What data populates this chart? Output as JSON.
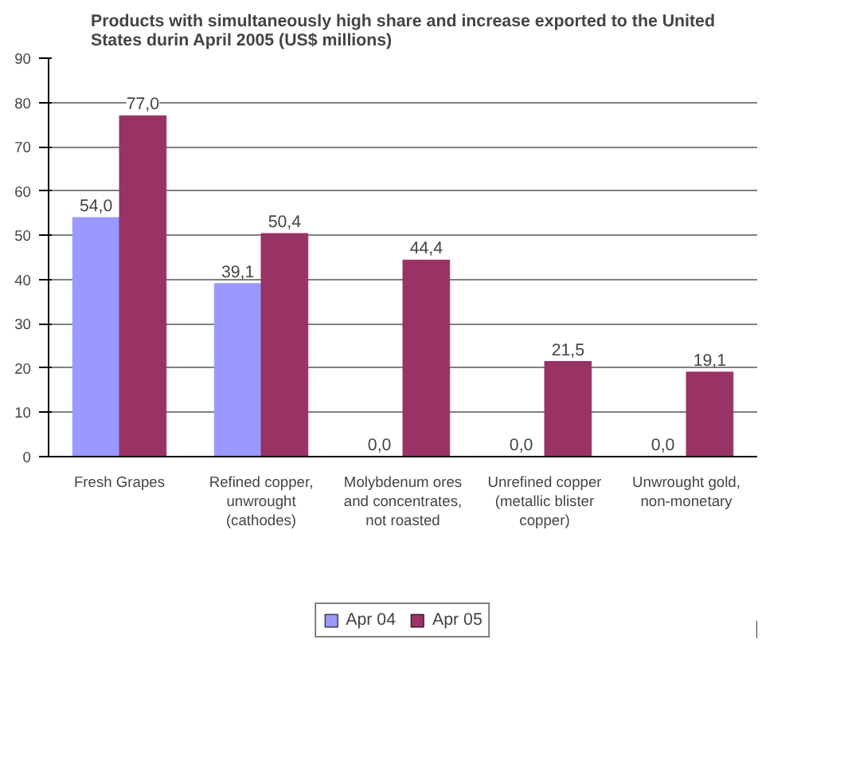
{
  "chart_data": {
    "type": "bar",
    "title": "Products with simultaneously high share and increase exported to the United States durin April 2005 (US$ millions)",
    "categories": [
      "Fresh Grapes",
      "Refined copper, unwrought (cathodes)",
      "Molybdenum ores and concentrates, not roasted",
      "Unrefined copper (metallic blister copper)",
      "Unwrought gold, non-monetary"
    ],
    "series": [
      {
        "name": "Apr 04",
        "color": "#9999ff",
        "values": [
          54.0,
          39.1,
          0.0,
          0.0,
          0.0
        ],
        "value_labels": [
          "54,0",
          "39,1",
          "0,0",
          "0,0",
          "0,0"
        ]
      },
      {
        "name": "Apr 05",
        "color": "#993366",
        "values": [
          77.0,
          50.4,
          44.4,
          21.5,
          19.1
        ],
        "value_labels": [
          "77,0",
          "50,4",
          "44,4",
          "21,5",
          "19,1"
        ]
      }
    ],
    "ylim": [
      0,
      90
    ],
    "yticks": [
      0,
      10,
      20,
      30,
      40,
      50,
      60,
      70,
      80,
      90
    ],
    "grid": "y",
    "legend": "bottom"
  }
}
